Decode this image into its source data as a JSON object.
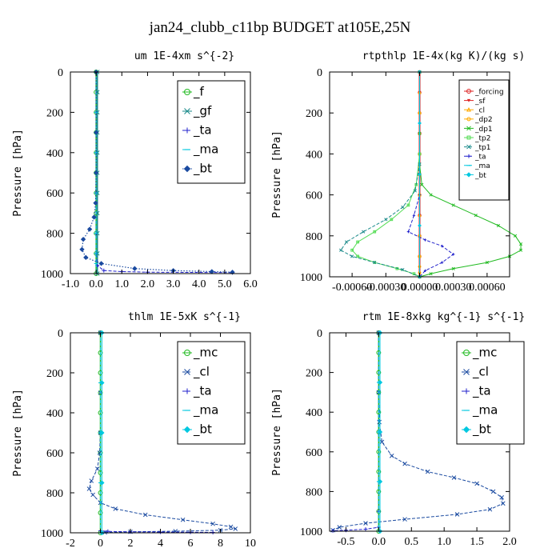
{
  "figure_title": "jan24_clubb_c11bp  BUDGET at105E,25N",
  "colors": {
    "green": "#22bb22",
    "red": "#dd2222",
    "blue": "#2222cc",
    "navy": "#1a4aa0",
    "teal": "#1a8a8a",
    "cyan": "#00c8e0",
    "orange": "#ffaa00",
    "lightgreen": "#55dd55",
    "frame": "#000000"
  },
  "chart_data": [
    {
      "type": "line",
      "title": "um  1E-4xm s^{-2}",
      "ylabel": "Pressure [hPa]",
      "xlim": [
        -1.0,
        6.0
      ],
      "ylim": [
        1000,
        0
      ],
      "xticks": [
        -1.0,
        0.0,
        1.0,
        2.0,
        3.0,
        4.0,
        5.0,
        6.0
      ],
      "xtick_labels": [
        "-1.0",
        "0.0",
        "1.0",
        "2.0",
        "3.0",
        "4.0",
        "5.0",
        "6.0"
      ],
      "yticks": [
        0,
        200,
        400,
        600,
        800,
        1000
      ],
      "ytick_labels": [
        "0",
        "200",
        "400",
        "600",
        "800",
        "1000"
      ],
      "legend": {
        "position": "top-right",
        "font_size": 15
      },
      "series": [
        {
          "name": "_f",
          "color": "green",
          "marker": "circle",
          "dash": "solid",
          "width": 1.5,
          "x": [
            0,
            0,
            0,
            0,
            0,
            0,
            0,
            0,
            0,
            0,
            0
          ],
          "y": [
            0,
            100,
            200,
            300,
            400,
            500,
            600,
            700,
            800,
            900,
            1000
          ]
        },
        {
          "name": "_gf",
          "color": "teal",
          "marker": "x",
          "dash": "solid",
          "width": 1.5,
          "x": [
            0.05,
            0.05,
            0.05,
            0.05,
            0.05,
            0.05,
            0.05,
            0.05,
            0.05,
            0.05,
            0.05
          ],
          "y": [
            0,
            100,
            200,
            300,
            400,
            500,
            600,
            700,
            800,
            900,
            1000
          ]
        },
        {
          "name": "_ta",
          "color": "blue",
          "marker": "plus",
          "dash": "dash",
          "width": 1,
          "x": [
            0,
            0,
            0,
            0,
            0,
            0,
            0.05,
            0.3,
            1.0,
            2.0,
            5.3
          ],
          "y": [
            0,
            200,
            400,
            600,
            800,
            900,
            960,
            985,
            990,
            993,
            995
          ]
        },
        {
          "name": "_ma",
          "color": "cyan",
          "marker": "dash",
          "dash": "dash",
          "width": 1,
          "x": [
            0,
            0,
            0,
            0,
            0,
            0,
            0,
            0
          ],
          "y": [
            0,
            200,
            400,
            600,
            800,
            900,
            950,
            1000
          ]
        },
        {
          "name": "_bt",
          "color": "navy",
          "marker": "diamond",
          "dash": "dot",
          "width": 1.2,
          "x": [
            0,
            0,
            0,
            -0.02,
            -0.08,
            -0.25,
            -0.5,
            -0.55,
            -0.4,
            0.2,
            1.5,
            3.0,
            4.5,
            5.3
          ],
          "y": [
            0,
            300,
            500,
            650,
            720,
            780,
            830,
            880,
            920,
            950,
            975,
            985,
            990,
            993
          ]
        }
      ]
    },
    {
      "type": "line",
      "title": "rtpthlp  1E-4x(kg K)/(kg s)",
      "ylabel": "Pressure [hPa]",
      "xlim": [
        -0.0008,
        0.0008
      ],
      "ylim": [
        1000,
        0
      ],
      "xticks": [
        -0.0006,
        -0.0003,
        0,
        0.0003,
        0.0006
      ],
      "xtick_labels": [
        "-0.00060",
        "-0.00030",
        "0.00000",
        "0.00030",
        "0.00060"
      ],
      "yticks": [
        0,
        200,
        400,
        600,
        800,
        1000
      ],
      "ytick_labels": [
        "0",
        "200",
        "400",
        "600",
        "800",
        "1000"
      ],
      "legend": {
        "position": "top-right",
        "font_size": 9
      },
      "series": [
        {
          "name": "_forcing",
          "color": "red",
          "marker": "circle",
          "dash": "solid",
          "width": 2,
          "x": [
            0,
            0,
            0,
            0,
            0,
            0,
            0,
            0,
            0,
            0,
            0
          ],
          "y": [
            0,
            100,
            200,
            300,
            400,
            500,
            600,
            700,
            800,
            900,
            1000
          ]
        },
        {
          "name": "_sf",
          "color": "red",
          "marker": "triangle-down",
          "dash": "solid",
          "width": 1.5,
          "x": [
            0,
            0,
            0,
            0,
            0,
            0,
            0,
            0,
            0,
            0,
            0
          ],
          "y": [
            0,
            100,
            200,
            300,
            400,
            500,
            600,
            700,
            800,
            900,
            1000
          ]
        },
        {
          "name": "_cl",
          "color": "orange",
          "marker": "triangle-up",
          "dash": "solid",
          "width": 1,
          "x": [
            0,
            0,
            0,
            0,
            0,
            0,
            0,
            0,
            0,
            0,
            0
          ],
          "y": [
            0,
            100,
            200,
            300,
            400,
            500,
            600,
            700,
            800,
            900,
            1000
          ]
        },
        {
          "name": "_dp2",
          "color": "orange",
          "marker": "circle-open",
          "dash": "solid",
          "width": 1,
          "x": [
            0,
            0,
            0,
            0,
            0,
            0,
            0,
            0,
            0
          ],
          "y": [
            0,
            200,
            400,
            600,
            800,
            900,
            950,
            980,
            1000
          ]
        },
        {
          "name": "_dp1",
          "color": "green",
          "marker": "x",
          "dash": "solid",
          "width": 1,
          "x": [
            0,
            0,
            0,
            2e-05,
            0.0001,
            0.0003,
            0.0005,
            0.0007,
            0.00085,
            0.0009,
            0.0009,
            0.0008,
            0.0006,
            0.0003,
            0.0001,
            0
          ],
          "y": [
            0,
            300,
            450,
            550,
            600,
            650,
            700,
            750,
            800,
            840,
            870,
            900,
            930,
            960,
            985,
            1000
          ]
        },
        {
          "name": "_tp2",
          "color": "lightgreen",
          "marker": "square-open",
          "dash": "solid",
          "width": 1,
          "x": [
            0,
            0,
            -3e-05,
            -0.0001,
            -0.00025,
            -0.0004,
            -0.00055,
            -0.0006,
            -0.00055,
            -0.0004,
            -0.0002,
            -5e-05,
            0
          ],
          "y": [
            0,
            400,
            550,
            650,
            720,
            780,
            830,
            870,
            900,
            930,
            960,
            985,
            1000
          ]
        },
        {
          "name": "_tp1",
          "color": "teal",
          "marker": "x",
          "dash": "dash",
          "width": 1,
          "x": [
            0,
            0,
            -4e-05,
            -0.00015,
            -0.0003,
            -0.0005,
            -0.00065,
            -0.0007,
            -0.0006,
            -0.0004,
            -0.00015,
            0
          ],
          "y": [
            0,
            450,
            580,
            660,
            720,
            780,
            830,
            870,
            900,
            930,
            965,
            1000
          ]
        },
        {
          "name": "_ta",
          "color": "blue",
          "marker": "plus",
          "dash": "dash",
          "width": 1,
          "x": [
            0,
            0,
            -5e-05,
            -0.0001,
            5e-05,
            0.0002,
            0.0003,
            0.0002,
            5e-05,
            0
          ],
          "y": [
            0,
            600,
            700,
            780,
            820,
            850,
            890,
            930,
            970,
            1000
          ]
        },
        {
          "name": "_ma",
          "color": "cyan",
          "marker": "dash",
          "dash": "dash",
          "width": 1,
          "x": [
            0,
            0,
            0,
            0,
            0
          ],
          "y": [
            0,
            250,
            500,
            750,
            1000
          ]
        },
        {
          "name": "_bt",
          "color": "cyan",
          "marker": "diamond",
          "dash": "solid",
          "width": 1,
          "x": [
            0,
            0,
            0,
            0,
            0
          ],
          "y": [
            0,
            250,
            500,
            750,
            1000
          ]
        }
      ]
    },
    {
      "type": "line",
      "title": "thlm  1E-5xK s^{-1}",
      "ylabel": "Pressure [hPa]",
      "xlim": [
        -2,
        10
      ],
      "ylim": [
        1000,
        0
      ],
      "xticks": [
        -2,
        0,
        2,
        4,
        6,
        8,
        10
      ],
      "xtick_labels": [
        "-2",
        "0",
        "2",
        "4",
        "6",
        "8",
        "10"
      ],
      "yticks": [
        0,
        200,
        400,
        600,
        800,
        1000
      ],
      "ytick_labels": [
        "0",
        "200",
        "400",
        "600",
        "800",
        "1000"
      ],
      "legend": {
        "position": "top-right",
        "font_size": 15
      },
      "series": [
        {
          "name": "_mc",
          "color": "green",
          "marker": "circle",
          "dash": "solid",
          "width": 1.5,
          "x": [
            0,
            0,
            0,
            0,
            0,
            0,
            0,
            0,
            0,
            0,
            0
          ],
          "y": [
            0,
            100,
            200,
            300,
            400,
            500,
            600,
            700,
            800,
            900,
            1000
          ]
        },
        {
          "name": "_cl",
          "color": "navy",
          "marker": "x",
          "dash": "dash",
          "width": 1,
          "x": [
            0,
            0,
            0,
            -0.05,
            -0.2,
            -0.6,
            -0.75,
            -0.5,
            0,
            1,
            3,
            5.5,
            7.5,
            8.7,
            9.0,
            8.0,
            5.0,
            2.0,
            0.3
          ],
          "y": [
            0,
            300,
            500,
            600,
            680,
            740,
            780,
            810,
            850,
            880,
            910,
            935,
            955,
            970,
            980,
            987,
            992,
            995,
            998
          ]
        },
        {
          "name": "_ta",
          "color": "blue",
          "marker": "plus",
          "dash": "dash",
          "width": 1,
          "x": [
            0,
            0,
            0,
            0.5,
            2,
            4,
            6,
            7.5
          ],
          "y": [
            0,
            500,
            990,
            993,
            995,
            996,
            997,
            998
          ]
        },
        {
          "name": "_ma",
          "color": "cyan",
          "marker": "dash",
          "dash": "dash",
          "width": 1,
          "x": [
            0,
            0,
            0,
            0,
            0
          ],
          "y": [
            0,
            250,
            500,
            750,
            1000
          ]
        },
        {
          "name": "_bt",
          "color": "cyan",
          "marker": "diamond",
          "dash": "solid",
          "width": 1,
          "x": [
            0.1,
            0.1,
            0.1,
            0.1,
            0.1
          ],
          "y": [
            0,
            250,
            500,
            750,
            1000
          ]
        }
      ]
    },
    {
      "type": "line",
      "title": "rtm  1E-8xkg kg^{-1} s^{-1}",
      "ylabel": "Pressure [hPa]",
      "xlim": [
        -0.75,
        2.0
      ],
      "ylim": [
        1000,
        0
      ],
      "xticks": [
        -0.5,
        0.0,
        0.5,
        1.0,
        1.5,
        2.0
      ],
      "xtick_labels": [
        "-0.5",
        "0.0",
        "0.5",
        "1.0",
        "1.5",
        "2.0"
      ],
      "yticks": [
        0,
        200,
        400,
        600,
        800,
        1000
      ],
      "ytick_labels": [
        "0",
        "200",
        "400",
        "600",
        "800",
        "1000"
      ],
      "legend": {
        "position": "top-right",
        "font_size": 15
      },
      "series": [
        {
          "name": "_mc",
          "color": "green",
          "marker": "circle",
          "dash": "solid",
          "width": 1.5,
          "x": [
            0,
            0,
            0,
            0,
            0,
            0,
            0,
            0,
            0,
            0,
            0
          ],
          "y": [
            0,
            100,
            200,
            300,
            400,
            500,
            600,
            700,
            800,
            900,
            1000
          ]
        },
        {
          "name": "_cl",
          "color": "navy",
          "marker": "x",
          "dash": "dash",
          "width": 1,
          "x": [
            0,
            0,
            0.01,
            0.05,
            0.2,
            0.4,
            0.75,
            1.15,
            1.5,
            1.75,
            1.88,
            1.9,
            1.7,
            1.2,
            0.4,
            -0.2,
            -0.6,
            -0.7
          ],
          "y": [
            0,
            300,
            450,
            550,
            620,
            660,
            700,
            730,
            760,
            800,
            830,
            860,
            890,
            915,
            940,
            960,
            980,
            995
          ]
        },
        {
          "name": "_ta",
          "color": "blue",
          "marker": "plus",
          "dash": "dash",
          "width": 1,
          "x": [
            0,
            0,
            0,
            0,
            -0.2,
            -0.5,
            -0.7
          ],
          "y": [
            0,
            500,
            900,
            980,
            990,
            995,
            998
          ]
        },
        {
          "name": "_ma",
          "color": "cyan",
          "marker": "dash",
          "dash": "dash",
          "width": 1,
          "x": [
            0,
            0,
            0,
            0,
            0
          ],
          "y": [
            0,
            250,
            500,
            750,
            1000
          ]
        },
        {
          "name": "_bt",
          "color": "cyan",
          "marker": "diamond",
          "dash": "solid",
          "width": 1,
          "x": [
            0.02,
            0.02,
            0.02,
            0.02,
            0.02
          ],
          "y": [
            0,
            250,
            500,
            750,
            1000
          ]
        }
      ]
    }
  ]
}
